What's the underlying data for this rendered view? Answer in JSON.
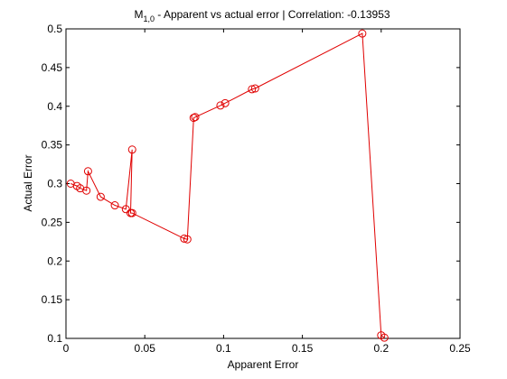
{
  "chart_data": {
    "type": "line",
    "title_main": "M",
    "title_sub": "1,0",
    "title_rest": " - Apparent vs actual error |  Correlation: -0.13953",
    "xlabel": "Apparent Error",
    "ylabel": "Actual Error",
    "xlim": [
      0,
      0.25
    ],
    "ylim": [
      0.1,
      0.5
    ],
    "xticks": [
      "0",
      "0.05",
      "0.1",
      "0.15",
      "0.2",
      "0.25"
    ],
    "yticks": [
      "0.1",
      "0.15",
      "0.2",
      "0.25",
      "0.3",
      "0.35",
      "0.4",
      "0.45",
      "0.5"
    ],
    "series": [
      {
        "color": "#e00000",
        "marker": "circle",
        "x": [
          0.003,
          0.007,
          0.009,
          0.013,
          0.014,
          0.022,
          0.031,
          0.038,
          0.042,
          0.041,
          0.042,
          0.075,
          0.077,
          0.081,
          0.082,
          0.098,
          0.101,
          0.118,
          0.12,
          0.188,
          0.2,
          0.202
        ],
        "y": [
          0.3,
          0.297,
          0.294,
          0.291,
          0.316,
          0.283,
          0.272,
          0.267,
          0.344,
          0.262,
          0.262,
          0.229,
          0.228,
          0.385,
          0.386,
          0.401,
          0.404,
          0.422,
          0.423,
          0.494,
          0.104,
          0.101
        ]
      }
    ],
    "grid": false,
    "legend": "none"
  }
}
